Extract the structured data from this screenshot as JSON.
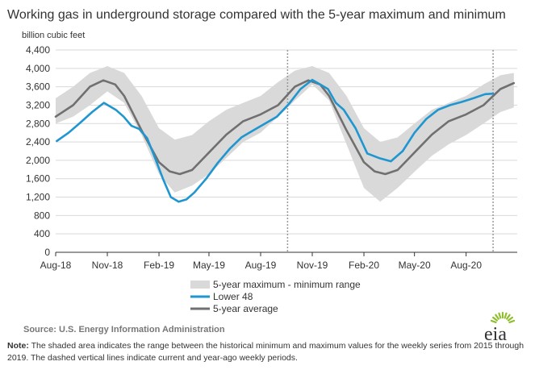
{
  "title": "Working gas in underground  storage compared with the 5-year maximum and minimum",
  "unit_label": "billion cubic feet",
  "source": "Source:  U.S. Energy Information Administration",
  "note": {
    "label": "Note:",
    "text": " The shaded area indicates the range between the historical minimum and maximum values for the weekly series from 2015 through 2019. The dashed vertical lines indicate current and year-ago weekly periods."
  },
  "logo_text": "eia",
  "colors": {
    "lower48": "#1f96cf",
    "average": "#707070",
    "range": "#d9d9d9",
    "dashed": "#999999",
    "logo_arc": "#8fbf2f"
  },
  "chart_data": {
    "type": "line",
    "ylim": [
      0,
      4400
    ],
    "yticks": [
      0,
      400,
      800,
      1200,
      1600,
      2000,
      2400,
      2800,
      3200,
      3600,
      4000,
      4400
    ],
    "ytick_labels": [
      "0",
      "400",
      "800",
      "1,200",
      "1,600",
      "2,000",
      "2,400",
      "2,800",
      "3,200",
      "3,600",
      "4,000",
      "4,400"
    ],
    "xlim": [
      "2018-08-01",
      "2020-10-31"
    ],
    "xticks": [
      "2018-08-01",
      "2018-11-01",
      "2019-02-01",
      "2019-05-01",
      "2019-08-01",
      "2019-11-01",
      "2020-02-01",
      "2020-05-01",
      "2020-08-01"
    ],
    "xtick_labels": [
      "Aug-18",
      "Nov-18",
      "Feb-19",
      "May-19",
      "Aug-19",
      "Nov-19",
      "Feb-20",
      "May-20",
      "Aug-20"
    ],
    "dashed_lines": [
      "2019-09-18",
      "2020-09-18"
    ],
    "legend_position": "bottom",
    "legend": {
      "range": "5-year maximum - minimum range",
      "lower48": "Lower 48",
      "average": "5-year average"
    },
    "band": {
      "name": "5-year maximum - minimum range",
      "x": [
        "2018-08-01",
        "2018-09-01",
        "2018-10-01",
        "2018-11-01",
        "2018-12-01",
        "2019-01-01",
        "2019-02-01",
        "2019-03-01",
        "2019-04-01",
        "2019-05-01",
        "2019-06-01",
        "2019-07-01",
        "2019-08-01",
        "2019-09-01",
        "2019-10-01",
        "2019-11-01",
        "2019-12-01",
        "2020-01-01",
        "2020-02-01",
        "2020-03-01",
        "2020-04-01",
        "2020-05-01",
        "2020-06-01",
        "2020-07-01",
        "2020-08-01",
        "2020-09-01",
        "2020-10-01",
        "2020-10-25"
      ],
      "max": [
        3350,
        3600,
        3900,
        4050,
        3900,
        3400,
        2700,
        2450,
        2550,
        2850,
        3100,
        3250,
        3400,
        3700,
        3950,
        4050,
        3900,
        3400,
        2700,
        2400,
        2500,
        2800,
        3100,
        3250,
        3400,
        3650,
        3850,
        3900
      ],
      "min": [
        2800,
        2950,
        3200,
        3500,
        3250,
        2550,
        1700,
        1300,
        1450,
        1700,
        2050,
        2400,
        2600,
        2950,
        3300,
        3650,
        3300,
        2350,
        1400,
        1100,
        1400,
        1750,
        2100,
        2350,
        2550,
        2800,
        3050,
        3150
      ]
    },
    "series": [
      {
        "name": "Lower 48",
        "x": [
          "2018-08-03",
          "2018-08-24",
          "2018-09-14",
          "2018-10-05",
          "2018-10-26",
          "2018-11-16",
          "2018-11-30",
          "2018-12-14",
          "2018-12-28",
          "2019-01-11",
          "2019-01-25",
          "2019-02-08",
          "2019-02-22",
          "2019-03-08",
          "2019-03-22",
          "2019-04-05",
          "2019-04-26",
          "2019-05-17",
          "2019-06-07",
          "2019-06-28",
          "2019-07-19",
          "2019-08-09",
          "2019-08-30",
          "2019-09-20",
          "2019-10-11",
          "2019-11-01",
          "2019-11-15",
          "2019-11-29",
          "2019-12-13",
          "2019-12-27",
          "2020-01-17",
          "2020-02-07",
          "2020-02-28",
          "2020-03-20",
          "2020-04-10",
          "2020-05-01",
          "2020-05-22",
          "2020-06-12",
          "2020-07-03",
          "2020-07-24",
          "2020-08-14",
          "2020-09-04",
          "2020-09-18"
        ],
        "y": [
          2420,
          2600,
          2820,
          3050,
          3250,
          3100,
          2950,
          2750,
          2680,
          2480,
          2050,
          1600,
          1200,
          1100,
          1150,
          1300,
          1600,
          1950,
          2250,
          2500,
          2650,
          2800,
          2950,
          3220,
          3550,
          3750,
          3650,
          3550,
          3250,
          3100,
          2700,
          2150,
          2050,
          1980,
          2200,
          2600,
          2900,
          3100,
          3200,
          3270,
          3350,
          3440,
          3450
        ]
      },
      {
        "name": "5-year average",
        "x": [
          "2018-08-01",
          "2018-09-01",
          "2018-10-01",
          "2018-10-25",
          "2018-11-15",
          "2018-12-01",
          "2019-01-01",
          "2019-02-01",
          "2019-02-20",
          "2019-03-10",
          "2019-04-01",
          "2019-05-01",
          "2019-06-01",
          "2019-07-01",
          "2019-08-01",
          "2019-09-01",
          "2019-10-01",
          "2019-10-25",
          "2019-11-15",
          "2019-12-01",
          "2020-01-01",
          "2020-02-01",
          "2020-02-20",
          "2020-03-10",
          "2020-04-01",
          "2020-05-01",
          "2020-06-01",
          "2020-07-01",
          "2020-08-01",
          "2020-09-01",
          "2020-10-01",
          "2020-10-25"
        ],
        "y": [
          2950,
          3200,
          3600,
          3740,
          3650,
          3400,
          2650,
          1960,
          1760,
          1700,
          1790,
          2170,
          2560,
          2850,
          3000,
          3200,
          3600,
          3740,
          3650,
          3400,
          2650,
          1960,
          1760,
          1700,
          1790,
          2170,
          2560,
          2850,
          3000,
          3200,
          3550,
          3680
        ]
      }
    ]
  }
}
